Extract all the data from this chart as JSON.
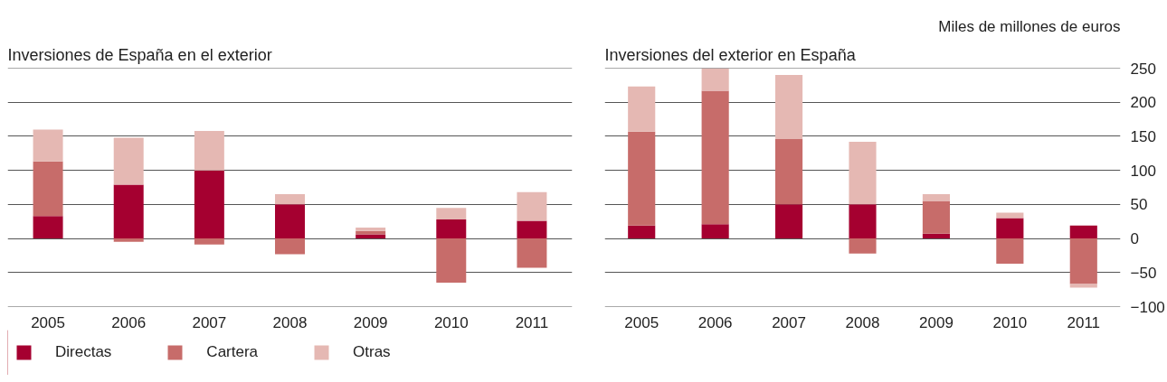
{
  "chart_data": [
    {
      "type": "bar",
      "stacked": true,
      "title": "Inversiones de España en el exterior",
      "categories": [
        "2005",
        "2006",
        "2007",
        "2008",
        "2009",
        "2010",
        "2011"
      ],
      "series": [
        {
          "name": "Directas",
          "color": "#a50030",
          "values": [
            33,
            79,
            100,
            50,
            6,
            28,
            26
          ]
        },
        {
          "name": "Cartera",
          "color": "#c76c6a",
          "values": [
            80,
            -5,
            -9,
            -23,
            5,
            -65,
            -43
          ]
        },
        {
          "name": "Otras",
          "color": "#e5b8b3",
          "values": [
            47,
            69,
            58,
            15,
            5,
            17,
            42
          ]
        }
      ],
      "ylim": [
        -100,
        250
      ],
      "yticks": [
        -100,
        -50,
        0,
        50,
        100,
        150,
        200,
        250
      ],
      "grid": "y",
      "tick_labels": "x",
      "legend": "bottom"
    },
    {
      "type": "bar",
      "stacked": true,
      "title": "Inversiones del exterior en España",
      "ylabel": "Miles de millones de euros",
      "categories": [
        "2005",
        "2006",
        "2007",
        "2008",
        "2009",
        "2010",
        "2011"
      ],
      "series": [
        {
          "color": "#a50030",
          "values": [
            19,
            21,
            50,
            50,
            7,
            30,
            19
          ]
        },
        {
          "color": "#c76c6a",
          "values": [
            138,
            196,
            96,
            -22,
            48,
            -37,
            -67
          ]
        },
        {
          "color": "#e5b8b3",
          "values": [
            66,
            33,
            94,
            92,
            10,
            8,
            -5
          ]
        }
      ],
      "ylim": [
        -100,
        250
      ],
      "yticks": [
        -100,
        -50,
        0,
        50,
        100,
        150,
        200,
        250
      ],
      "grid": "y"
    }
  ]
}
